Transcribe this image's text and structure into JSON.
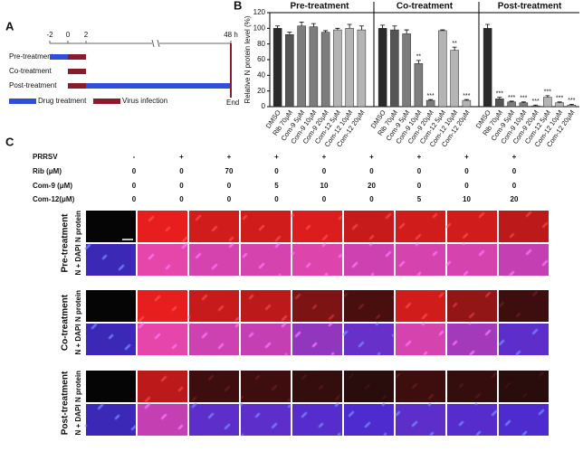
{
  "panel_a": {
    "label": "A",
    "timepoints": [
      "-2",
      "0",
      "2",
      "48 h"
    ],
    "rows": [
      "Pre-treatment",
      "Co-treatment",
      "Post-treatment"
    ],
    "legend": [
      "Drug treatment",
      "Virus infection"
    ],
    "end": "End"
  },
  "panel_b_label": "B",
  "chart_data": {
    "type": "bar",
    "ylabel": "Relative N protein level (%)",
    "ylim": [
      0,
      120
    ],
    "yticks": [
      0,
      20,
      40,
      60,
      80,
      100,
      120
    ],
    "groups": [
      {
        "title": "Pre-treatment",
        "categories": [
          "DMSO",
          "Rib 70μM",
          "Com-9 5μM",
          "Com-9 10μM",
          "Com-9 20μM",
          "Com-12 5μM",
          "Com-12 10μM",
          "Com-12 20μM"
        ],
        "values": [
          100,
          92,
          103,
          102,
          95,
          98,
          100,
          98
        ],
        "errors": [
          3,
          3,
          5,
          4,
          2,
          2,
          5,
          5
        ],
        "annotations": [
          null,
          null,
          null,
          null,
          null,
          null,
          null,
          null
        ]
      },
      {
        "title": "Co-treatment",
        "categories": [
          "DMSO",
          "Rib 70μM",
          "Com-9 5μM",
          "Com-9 10μM",
          "Com-9 20μM",
          "Com-12 5μM",
          "Com-12 10μM",
          "Com-12 20μM"
        ],
        "values": [
          100,
          98,
          93,
          55,
          8,
          97,
          72,
          8
        ],
        "errors": [
          4,
          5,
          5,
          4,
          1,
          1,
          4,
          1
        ],
        "annotations": [
          null,
          null,
          null,
          "**",
          "***",
          null,
          "**",
          "***"
        ]
      },
      {
        "title": "Post-treatment",
        "categories": [
          "DMSO",
          "Rib 70μM",
          "Com-9 5μM",
          "Com-9 10μM",
          "Com-9 20μM",
          "Com-12 5μM",
          "Com-12 10μM",
          "Com-12 20μM"
        ],
        "values": [
          100,
          10,
          6,
          5,
          1,
          12,
          5,
          2
        ],
        "errors": [
          5,
          2,
          1,
          1,
          1,
          2,
          1,
          1
        ],
        "annotations": [
          null,
          "***",
          "***",
          "***",
          "***",
          "***",
          "***",
          "***"
        ]
      }
    ],
    "colors": [
      "#2a2a2a",
      "#555555",
      "#7d7d7d",
      "#7d7d7d",
      "#7d7d7d",
      "#b4b4b4",
      "#b4b4b4",
      "#b4b4b4"
    ]
  },
  "panel_c": {
    "label": "C",
    "table": {
      "headers": [
        "PRRSV",
        "Rib (μM)",
        "Com-9 (μM)",
        "Com-12(μM)"
      ],
      "rows": [
        [
          "-",
          "+",
          "+",
          "+",
          "+",
          "+",
          "+",
          "+",
          "+"
        ],
        [
          0,
          0,
          70,
          0,
          0,
          0,
          0,
          0,
          0
        ],
        [
          0,
          0,
          0,
          5,
          10,
          20,
          0,
          0,
          0
        ],
        [
          0,
          0,
          0,
          0,
          0,
          0,
          5,
          10,
          20
        ]
      ]
    },
    "groups": [
      "Pre-treatment",
      "Co-treatment",
      "Post-treatment"
    ],
    "row_labels": [
      "N protein",
      "N + DAPI"
    ]
  }
}
